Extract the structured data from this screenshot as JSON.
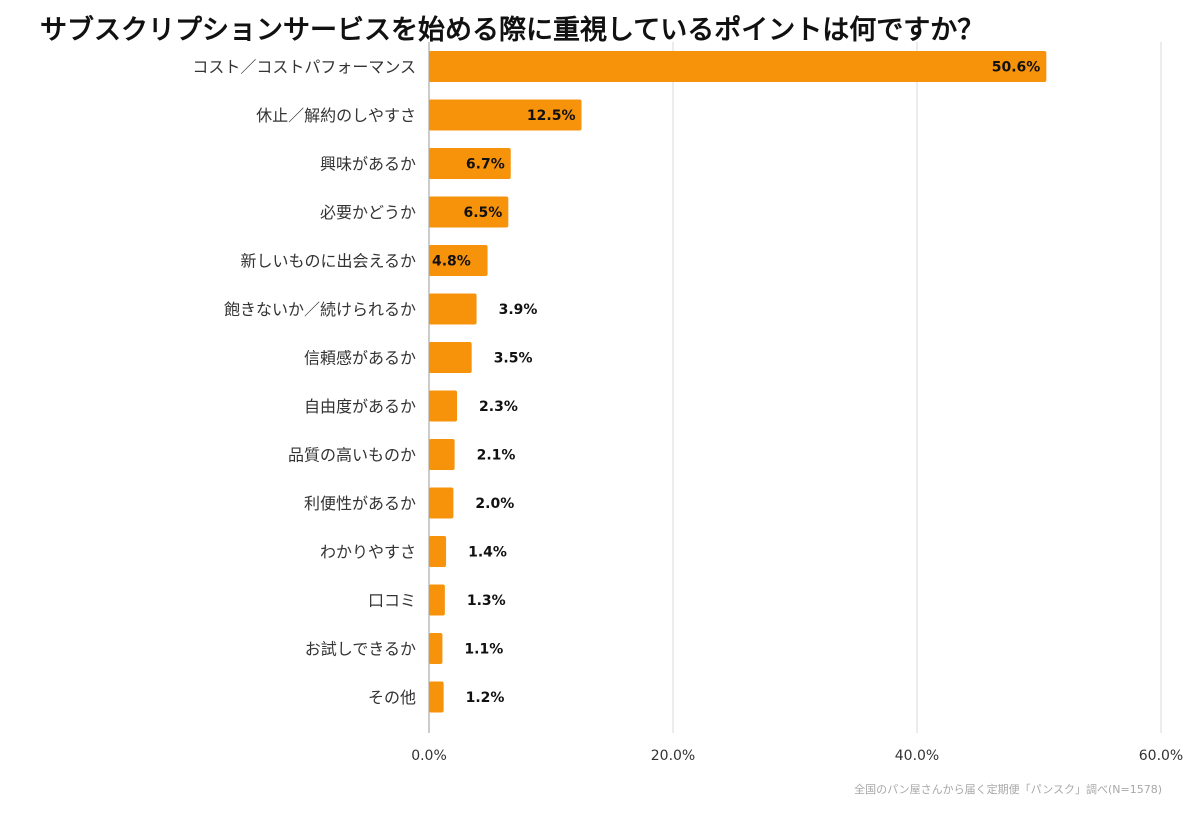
{
  "title": "サブスクリプションサービスを始める際に重視しているポイントは何ですか？",
  "source_note": "全国のパン屋さんから届く定期便「パンスク」調べ(N=1578)",
  "colors": {
    "bar": "#F7930B",
    "grid": "#d9d9d9",
    "label": "#333333",
    "value": "#111111"
  },
  "chart_data": {
    "type": "bar",
    "orientation": "horizontal",
    "title": "サブスクリプションサービスを始める際に重視しているポイントは何ですか？",
    "xlabel": "",
    "ylabel": "",
    "xlim": [
      0,
      60
    ],
    "x_ticks": [
      "0.0%",
      "20.0%",
      "40.0%",
      "60.0%"
    ],
    "grid": true,
    "categories": [
      "コスト／コストパフォーマンス",
      "休止／解約のしやすさ",
      "興味があるか",
      "必要かどうか",
      "新しいものに出会えるか",
      "飽きないか／続けられるか",
      "信頼感があるか",
      "自由度があるか",
      "品質の高いものか",
      "利便性があるか",
      "わかりやすさ",
      "口コミ",
      "お試しできるか",
      "その他"
    ],
    "values": [
      50.6,
      12.5,
      6.7,
      6.5,
      4.8,
      3.9,
      3.5,
      2.3,
      2.1,
      2.0,
      1.4,
      1.3,
      1.1,
      1.2
    ],
    "value_labels": [
      "50.6%",
      "12.5%",
      "6.7%",
      "6.5%",
      "4.8%",
      "3.9%",
      "3.5%",
      "2.3%",
      "2.1%",
      "2.0%",
      "1.4%",
      "1.3%",
      "1.1%",
      "1.2%"
    ]
  }
}
